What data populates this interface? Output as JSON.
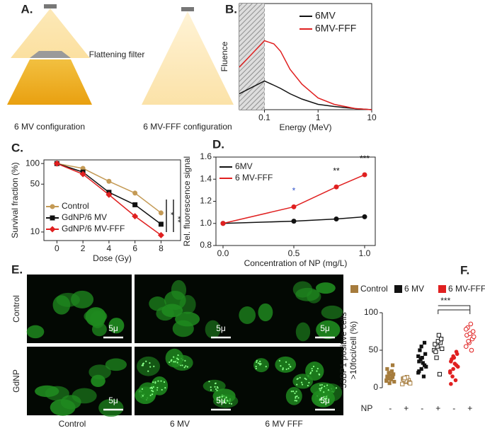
{
  "panel_labels": [
    "A.",
    "B.",
    "C.",
    "D.",
    "E.",
    "F."
  ],
  "panel_a": {
    "filter_label": "Flattening filter",
    "left_caption": "6 MV configuration",
    "right_caption": "6 MV-FFF configuration"
  },
  "panel_e": {
    "row_labels": [
      "Control",
      "GdNP"
    ],
    "column_labels": [
      "Control",
      "6 MV",
      "6 MV FFF"
    ],
    "scale_bar": "5μ"
  },
  "chart_data": [
    {
      "type": "line",
      "xlabel": "Energy (MeV)",
      "ylabel": "Fluence",
      "xlog": true,
      "xlim": [
        0.034,
        10
      ],
      "xticks": [
        0.1,
        1,
        10
      ],
      "ylim": [
        0,
        1
      ],
      "hatch_until": 0.1,
      "legend": "upper right",
      "x": [
        0.034,
        0.1,
        0.15,
        0.2,
        0.3,
        0.5,
        1,
        2,
        5,
        10
      ],
      "series": [
        {
          "name": "6MV",
          "color": "#111111",
          "values": [
            0.15,
            0.27,
            0.23,
            0.2,
            0.15,
            0.1,
            0.05,
            0.03,
            0.01,
            0
          ]
        },
        {
          "name": "6MV-FFF",
          "color": "#e02020",
          "values": [
            0.4,
            0.65,
            0.62,
            0.55,
            0.38,
            0.24,
            0.11,
            0.05,
            0.01,
            0
          ]
        }
      ]
    },
    {
      "type": "line",
      "markers": true,
      "xlabel": "Dose (Gy)",
      "ylabel": "Survival fraction (%)",
      "ylog": true,
      "xlim": [
        -1,
        9.5
      ],
      "xticks": [
        0,
        2,
        4,
        6,
        8
      ],
      "ylim": [
        7.5,
        113
      ],
      "yticks": [
        10,
        50,
        100
      ],
      "legend": "lower left",
      "annotations": [
        "*",
        "**"
      ],
      "x": [
        0,
        2,
        4,
        6,
        8
      ],
      "series": [
        {
          "name": "Control",
          "color": "#c49a55",
          "marker": "circle",
          "values": [
            100,
            85,
            55,
            37,
            19
          ]
        },
        {
          "name": "GdNP/6 MV",
          "color": "#111111",
          "marker": "square",
          "values": [
            100,
            75,
            38,
            25,
            13
          ]
        },
        {
          "name": "GdNP/6 MV-FFF",
          "color": "#e02020",
          "marker": "diamond",
          "values": [
            100,
            70,
            35,
            17,
            9
          ]
        }
      ]
    },
    {
      "type": "line",
      "markers": true,
      "xlabel": "Concentration of NP (mg/L)",
      "ylabel": "Rel. fluorescence signal",
      "xlim": [
        -0.05,
        1.075
      ],
      "xticks": [
        {
          "value": 0,
          "label": "0.0"
        },
        0.5,
        {
          "value": 1,
          "label": "1.0"
        }
      ],
      "ylim": [
        0.8,
        1.6
      ],
      "yticks": [
        0.8,
        {
          "value": 1,
          "label": "1.0"
        },
        1.2,
        1.4,
        1.6
      ],
      "legend": "upper left",
      "annotations": [
        {
          "text": "*",
          "color": "#3355cc"
        },
        {
          "text": "**",
          "color": "#111111"
        },
        {
          "text": "***",
          "color": "#111111"
        }
      ],
      "x": [
        0,
        0.5,
        0.8,
        1
      ],
      "series": [
        {
          "name": "6MV",
          "color": "#111111",
          "marker": "circle",
          "values": [
            1,
            1.02,
            1.04,
            1.06
          ]
        },
        {
          "name": "6 MV-FFF",
          "color": "#e02020",
          "marker": "circle",
          "values": [
            1,
            1.15,
            1.33,
            1.44
          ]
        }
      ]
    },
    {
      "type": "strip",
      "ylabel": [
        "53BP1 positive cells",
        ">10foci/cell (%)"
      ],
      "xlabel": "NP",
      "ylim": [
        0,
        100
      ],
      "yticks": [
        0,
        50,
        100
      ],
      "categories": [
        "-",
        "+",
        "-",
        "+",
        "-",
        "+"
      ],
      "annotations": [
        "***"
      ],
      "series": [
        {
          "name": "Control",
          "color": "#a67c3d",
          "values": [
            [
              10,
              12,
              14,
              15,
              17,
              18,
              13,
              11,
              8,
              20,
              22,
              9,
              6,
              30,
              25
            ],
            [
              5,
              8,
              10,
              12,
              9,
              7,
              11,
              14,
              6,
              13
            ]
          ]
        },
        {
          "name": "6  MV",
          "color": "#111111",
          "values": [
            [
              20,
              25,
              30,
              35,
              40,
              45,
              50,
              33,
              28,
              38,
              15,
              42,
              55,
              60,
              22
            ],
            [
              50,
              55,
              60,
              58,
              62,
              65,
              48,
              70,
              52,
              40,
              18
            ]
          ]
        },
        {
          "name": "6 MV-FFF",
          "color": "#e02020",
          "values": [
            [
              20,
              25,
              30,
              35,
              40,
              45,
              38,
              32,
              28,
              15,
              10,
              22,
              42,
              48,
              5
            ],
            [
              55,
              60,
              65,
              70,
              72,
              75,
              80,
              85,
              68,
              62,
              50,
              78
            ]
          ]
        }
      ]
    }
  ]
}
